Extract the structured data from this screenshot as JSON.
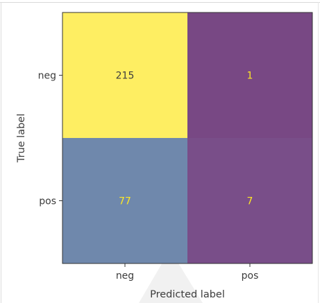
{
  "chart_data": {
    "type": "heatmap",
    "title": "",
    "xlabel": "Predicted label",
    "ylabel": "True label",
    "x_categories": [
      "neg",
      "pos"
    ],
    "y_categories": [
      "neg",
      "pos"
    ],
    "values": [
      [
        215,
        1
      ],
      [
        77,
        7
      ]
    ],
    "colormap": "viridis",
    "colors": {
      "high": "#fde725",
      "low": "#440154",
      "text_on_light": "#3d3d3d",
      "text_on_dark": "#fde725",
      "axis": "#333333",
      "tick_text": "#3c3c3c"
    },
    "colorbar": false,
    "grid": false
  }
}
